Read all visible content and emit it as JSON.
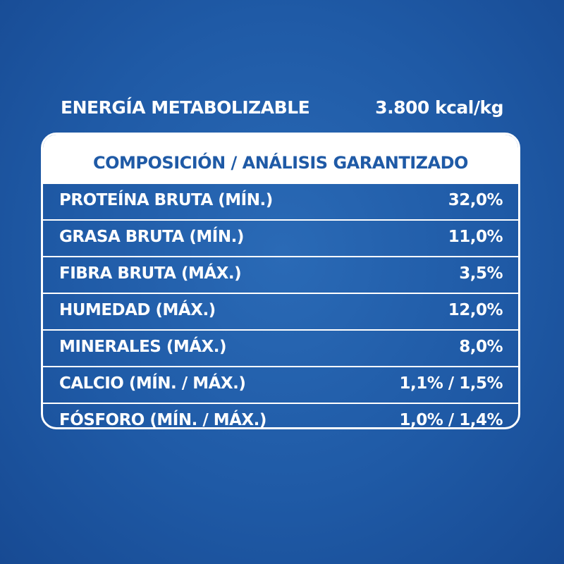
{
  "energy": {
    "label": "ENERGÍA METABOLIZABLE",
    "value": "3.800 kcal/kg"
  },
  "table": {
    "header": "COMPOSICIÓN / ANÁLISIS GARANTIZADO",
    "rows": [
      {
        "name": "PROTEÍNA BRUTA (MÍN.)",
        "value": "32,0%"
      },
      {
        "name": "GRASA BRUTA (MÍN.)",
        "value": "11,0%"
      },
      {
        "name": "FIBRA BRUTA (MÁX.)",
        "value": "3,5%"
      },
      {
        "name": "HUMEDAD (MÁX.)",
        "value": "12,0%"
      },
      {
        "name": "MINERALES (MÁX.)",
        "value": "8,0%"
      },
      {
        "name": "CALCIO (MÍN. / MÁX.)",
        "value": "1,1% / 1,5%"
      },
      {
        "name": "FÓSFORO (MÍN. / MÁX.)",
        "value": "1,0% / 1,4%"
      }
    ]
  },
  "colors": {
    "background": "#1f5aa6",
    "text": "#ffffff",
    "header_text": "#1f5aa6"
  }
}
